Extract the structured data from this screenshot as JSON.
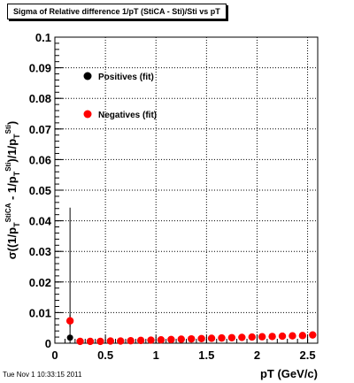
{
  "chart_data": {
    "type": "scatter",
    "title": "Sigma of Relative difference 1/pT (StiCA - Sti)/Sti vs pT",
    "xlabel": "pT (GeV/c)",
    "ylabel": "σ((1/p_T^StiCA - 1/p_T^Sti)/1/p_T^Sti)",
    "xlim": [
      0,
      2.6
    ],
    "ylim": [
      0,
      0.1
    ],
    "x_ticks": [
      "0",
      "0.5",
      "1",
      "1.5",
      "2",
      "2.5"
    ],
    "y_ticks": [
      "0",
      "0.01",
      "0.02",
      "0.03",
      "0.04",
      "0.05",
      "0.06",
      "0.07",
      "0.08",
      "0.09",
      "0.1"
    ],
    "grid": true,
    "legend_position": "top-left",
    "series": [
      {
        "name": "Positives (fit)",
        "color": "#000000",
        "x": [
          0.15,
          0.25,
          0.35,
          0.45,
          0.55,
          0.65,
          0.75,
          0.85,
          0.95,
          1.05,
          1.15,
          1.25,
          1.35,
          1.45,
          1.55,
          1.65,
          1.75,
          1.85,
          1.95,
          2.05,
          2.15,
          2.25,
          2.35,
          2.45,
          2.55
        ],
        "y": [
          0.0018,
          0.0006,
          0.0005,
          0.0005,
          0.0006,
          0.0006,
          0.0007,
          0.0008,
          0.0009,
          0.001,
          0.0011,
          0.0012,
          0.0013,
          0.0014,
          0.0015,
          0.0016,
          0.0017,
          0.0018,
          0.0019,
          0.0021,
          0.0022,
          0.0023,
          0.0024,
          0.0025,
          0.0026
        ],
        "y_err": [
          0.0425,
          0.0004,
          0.0002,
          0.0002,
          0.0002,
          0.0002,
          0.0002,
          0.0002,
          0.0002,
          0.0002,
          0.0002,
          0.0002,
          0.0002,
          0.0002,
          0.0002,
          0.0002,
          0.0002,
          0.0002,
          0.0002,
          0.0002,
          0.0002,
          0.0002,
          0.0002,
          0.0002,
          0.0002
        ]
      },
      {
        "name": "Negatives (fit)",
        "color": "#ff0000",
        "x": [
          0.15,
          0.25,
          0.35,
          0.45,
          0.55,
          0.65,
          0.75,
          0.85,
          0.95,
          1.05,
          1.15,
          1.25,
          1.35,
          1.45,
          1.55,
          1.65,
          1.75,
          1.85,
          1.95,
          2.05,
          2.15,
          2.25,
          2.35,
          2.45,
          2.55
        ],
        "y": [
          0.0073,
          0.0006,
          0.0006,
          0.0006,
          0.0007,
          0.0007,
          0.0008,
          0.0009,
          0.001,
          0.0011,
          0.0012,
          0.0013,
          0.0014,
          0.0015,
          0.0016,
          0.0017,
          0.0018,
          0.0019,
          0.002,
          0.0021,
          0.0022,
          0.0023,
          0.0024,
          0.0025,
          0.0027
        ],
        "y_err": [
          0.002,
          0.0003,
          0.0002,
          0.0002,
          0.0002,
          0.0002,
          0.0002,
          0.0002,
          0.0002,
          0.0002,
          0.0002,
          0.0002,
          0.0002,
          0.0002,
          0.0002,
          0.0002,
          0.0002,
          0.0002,
          0.0002,
          0.0002,
          0.0002,
          0.0002,
          0.0002,
          0.0002,
          0.0002
        ]
      }
    ]
  },
  "footer": "Tue Nov  1 10:33:15 2011"
}
